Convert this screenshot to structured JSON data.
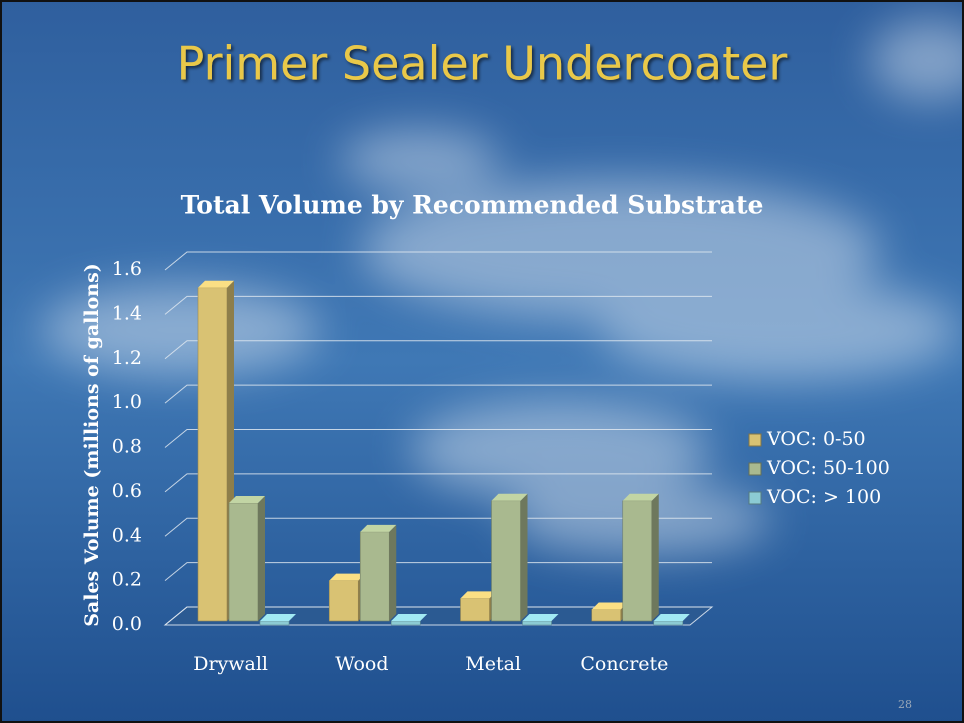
{
  "slide": {
    "title": "Primer Sealer Undercoater",
    "page_number": "28"
  },
  "chart_data": {
    "type": "bar3d",
    "title": "Total Volume by Recommended Substrate",
    "y_label": "Sales Volume (millions of gallons)",
    "categories": [
      "Drywall",
      "Wood",
      "Metal",
      "Concrete"
    ],
    "series": [
      {
        "name": "VOC: 0-50",
        "color": "#d9c273",
        "values": [
          1.52,
          0.2,
          0.12,
          0.07
        ]
      },
      {
        "name": "VOC: 50-100",
        "color": "#a9b98f",
        "values": [
          0.55,
          0.42,
          0.56,
          0.56
        ]
      },
      {
        "name": "VOC: > 100",
        "color": "#8ccbd3",
        "values": [
          0,
          0,
          0,
          0
        ]
      }
    ],
    "ylim": [
      0,
      1.6
    ],
    "yticks": [
      {
        "value": 0,
        "label": "0.0"
      },
      0.2,
      0.4,
      0.6,
      0.8,
      {
        "value": 1,
        "label": "1.0"
      },
      1.2,
      1.4,
      1.6
    ],
    "grid": true,
    "legend": "right"
  }
}
